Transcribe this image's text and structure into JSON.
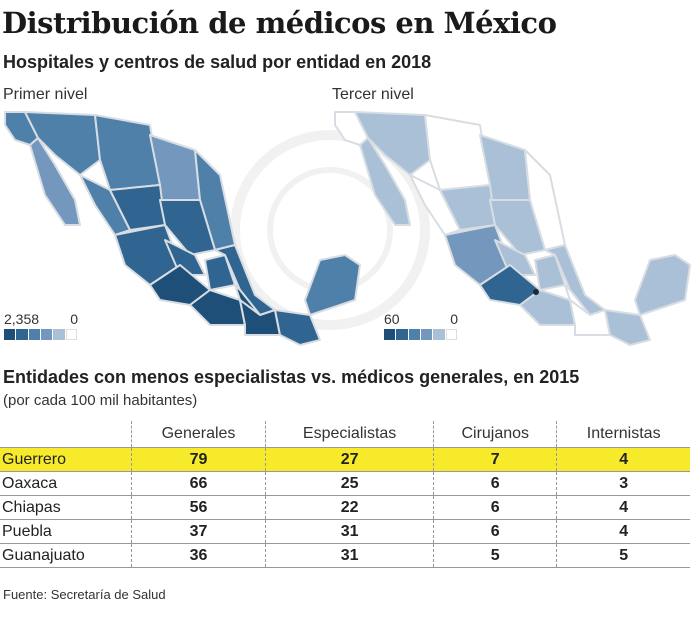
{
  "title": "Distribución de médicos en México",
  "subtitle": "Hospitales y centros de salud por entidad en 2018",
  "chart_data": [
    {
      "type": "map",
      "title": "Primer nivel",
      "legend": {
        "max_label": "2,358",
        "min_label": "0",
        "colors": [
          "#1e4f78",
          "#2f6590",
          "#4f80a9",
          "#7498bd",
          "#a9c0d7",
          "#ffffff"
        ]
      },
      "region_levels": [
        3,
        2,
        3,
        3,
        2,
        3,
        3,
        4,
        4,
        4,
        4,
        5,
        4,
        4,
        5,
        5,
        5,
        4,
        3
      ]
    },
    {
      "type": "map",
      "title": "Tercer nivel",
      "legend": {
        "max_label": "60",
        "min_label": "0",
        "colors": [
          "#1e4f78",
          "#2f6590",
          "#4f80a9",
          "#7498bd",
          "#a9c0d7",
          "#ffffff"
        ]
      },
      "region_levels": [
        0,
        1,
        1,
        0,
        1,
        0,
        0,
        1,
        1,
        2,
        1,
        4,
        1,
        1,
        1,
        0,
        0,
        1,
        1
      ]
    },
    {
      "type": "table",
      "title": "Entidades con menos especialistas vs. médicos generales, en 2015",
      "subtitle": "(por cada 100 mil habitantes)",
      "columns": [
        "",
        "Generales",
        "Especialistas",
        "Cirujanos",
        "Internistas"
      ],
      "rows": [
        {
          "name": "Guerrero",
          "values": [
            79,
            27,
            7,
            4
          ],
          "highlight": true
        },
        {
          "name": "Oaxaca",
          "values": [
            66,
            25,
            6,
            3
          ]
        },
        {
          "name": "Chiapas",
          "values": [
            56,
            22,
            6,
            4
          ]
        },
        {
          "name": "Puebla",
          "values": [
            37,
            31,
            6,
            4
          ]
        },
        {
          "name": "Guanajuato",
          "values": [
            36,
            31,
            5,
            5
          ]
        }
      ],
      "highlight_color": "#f6ea2b"
    }
  ],
  "source": "Fuente: Secretaría de Salud"
}
